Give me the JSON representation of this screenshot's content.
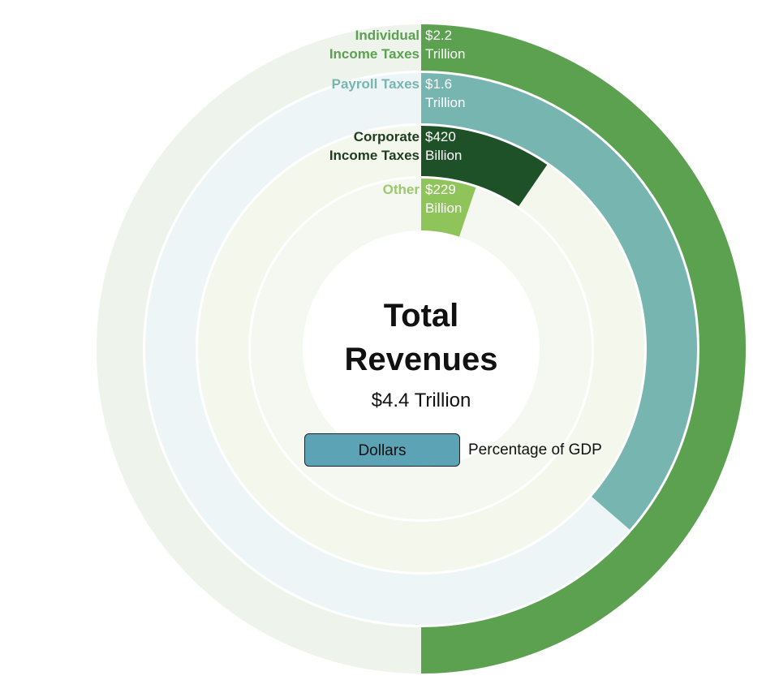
{
  "chart_data": {
    "type": "radial-bar",
    "title": "Total Revenues",
    "total": {
      "value": 4400,
      "label": "$4.4 Trillion"
    },
    "categories": [
      "Individual Income Taxes",
      "Payroll Taxes",
      "Corporate Income Taxes",
      "Other"
    ],
    "values": [
      2200,
      1600,
      420,
      229
    ],
    "value_labels": [
      "$2.2 Trillion",
      "$1.6 Trillion",
      "$420 Billion",
      "$229 Billion"
    ],
    "colors": [
      "#5ba150",
      "#77b5b0",
      "#1e5128",
      "#8fc45b"
    ],
    "label_colors": [
      "#5ba150",
      "#77b5b0",
      "#1e3d20",
      "#9cc96a"
    ],
    "toggle": {
      "options": [
        "Dollars",
        "Percentage of GDP"
      ],
      "selected": 0
    }
  }
}
